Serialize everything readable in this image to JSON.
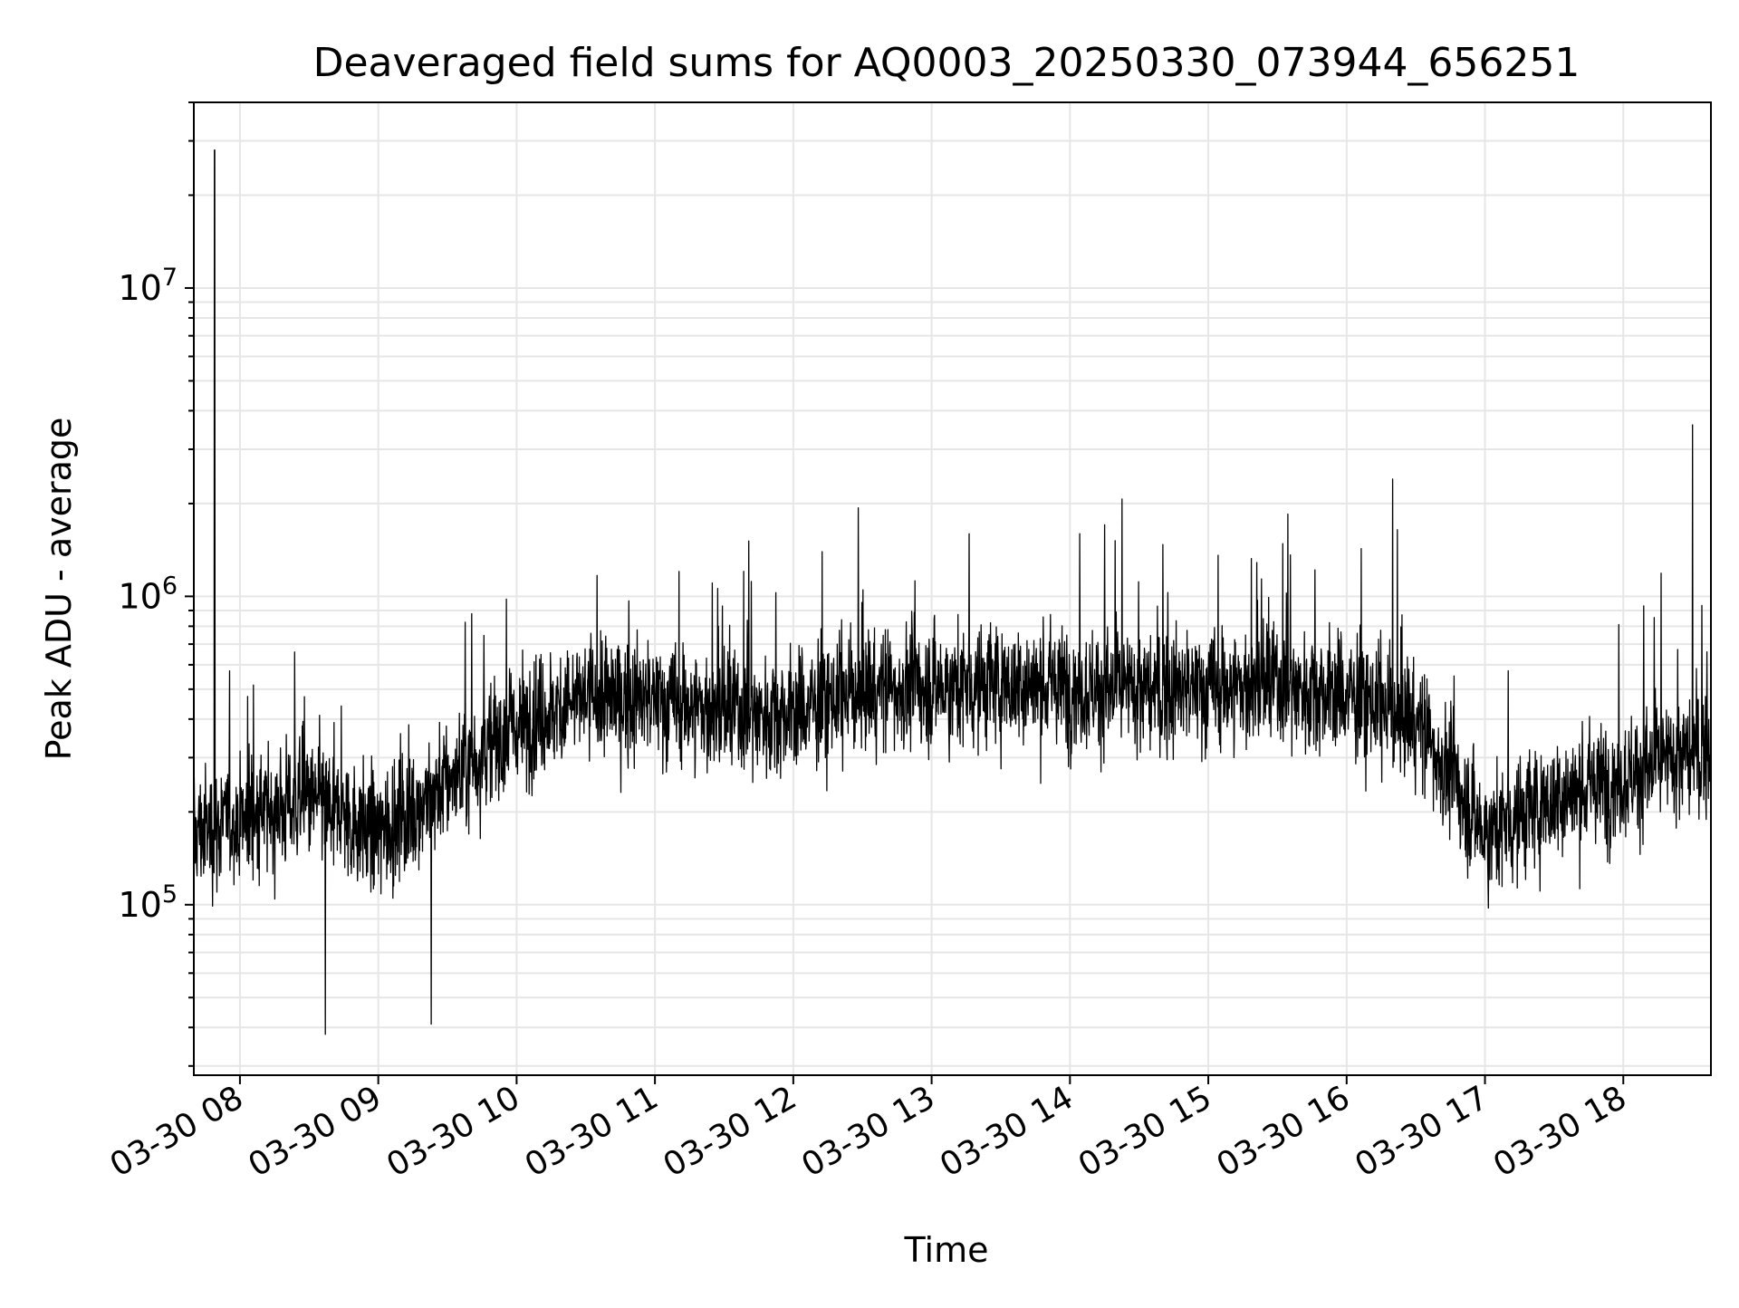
{
  "chart_data": {
    "type": "line",
    "title": "Deaveraged field sums for AQ0003_20250330_073944_656251",
    "xlabel": "Time",
    "ylabel": "Peak ADU - average",
    "y_scale": "log",
    "ylim": [
      28000,
      40000000
    ],
    "xlim": [
      "2025-03-30 07:40",
      "2025-03-30 18:38"
    ],
    "y_ticks": [
      {
        "value": 100000,
        "base": "10",
        "exp": "5"
      },
      {
        "value": 1000000,
        "base": "10",
        "exp": "6"
      },
      {
        "value": 10000000,
        "base": "10",
        "exp": "7"
      }
    ],
    "x_ticks": [
      {
        "value": "2025-03-30 08:00",
        "label": "03-30 08"
      },
      {
        "value": "2025-03-30 09:00",
        "label": "03-30 09"
      },
      {
        "value": "2025-03-30 10:00",
        "label": "03-30 10"
      },
      {
        "value": "2025-03-30 11:00",
        "label": "03-30 11"
      },
      {
        "value": "2025-03-30 12:00",
        "label": "03-30 12"
      },
      {
        "value": "2025-03-30 13:00",
        "label": "03-30 13"
      },
      {
        "value": "2025-03-30 14:00",
        "label": "03-30 14"
      },
      {
        "value": "2025-03-30 15:00",
        "label": "03-30 15"
      },
      {
        "value": "2025-03-30 16:00",
        "label": "03-30 16"
      },
      {
        "value": "2025-03-30 17:00",
        "label": "03-30 17"
      },
      {
        "value": "2025-03-30 18:00",
        "label": "03-30 18"
      }
    ],
    "grid": true,
    "line_color": "#000000",
    "grid_color": "#e6e6e6",
    "series": [
      {
        "x": [
          "2025-03-30 07:40",
          "2025-03-30 08:00",
          "2025-03-30 08:30",
          "2025-03-30 09:00",
          "2025-03-30 09:30",
          "2025-03-30 10:00",
          "2025-03-30 10:30",
          "2025-03-30 11:00",
          "2025-03-30 11:30",
          "2025-03-30 12:00",
          "2025-03-30 12:30",
          "2025-03-30 13:00",
          "2025-03-30 13:30",
          "2025-03-30 14:00",
          "2025-03-30 14:30",
          "2025-03-30 15:00",
          "2025-03-30 15:30",
          "2025-03-30 16:00",
          "2025-03-30 16:30",
          "2025-03-30 17:00",
          "2025-03-30 17:30",
          "2025-03-30 18:00",
          "2025-03-30 18:38"
        ],
        "y": [
          170000,
          190000,
          220000,
          170000,
          250000,
          380000,
          470000,
          460000,
          420000,
          420000,
          500000,
          510000,
          520000,
          510000,
          490000,
          500000,
          520000,
          480000,
          400000,
          170000,
          220000,
          260000,
          320000
        ],
        "spikes": [
          {
            "x": "2025-03-30 07:49",
            "y": 28000000
          },
          {
            "x": "2025-03-30 16:20",
            "y": 2400000
          },
          {
            "x": "2025-03-30 18:30",
            "y": 3600000
          },
          {
            "x": "2025-03-30 08:37",
            "y": 38000
          },
          {
            "x": "2025-03-30 09:23",
            "y": 41000
          }
        ]
      }
    ]
  }
}
